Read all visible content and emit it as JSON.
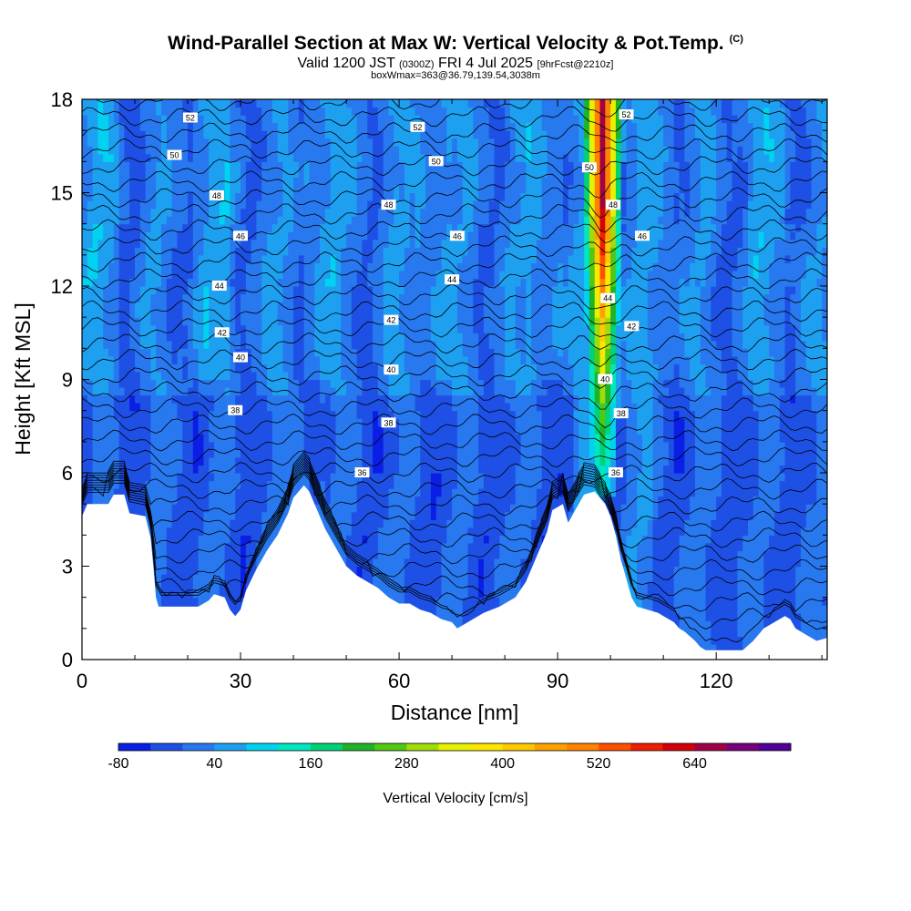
{
  "header": {
    "title": "Wind-Parallel Section at Max W: Vertical Velocity & Pot.Temp.",
    "copyright": "(C)",
    "valid_prefix": "Valid 1200 JST",
    "valid_utc": "(0300Z)",
    "valid_date": "FRI 4 Jul 2025",
    "forecast": "[9hrFcst@2210z]",
    "boxwmax": "boxWmax=363@36.79,139.54,3038m"
  },
  "chart_data": {
    "type": "heatmap",
    "xlabel": "Distance [nm]",
    "ylabel": "Height [Kft MSL]",
    "xlim": [
      0,
      141
    ],
    "ylim": [
      0,
      18
    ],
    "xticks": [
      0,
      30,
      60,
      90,
      120
    ],
    "yticks": [
      0,
      3,
      6,
      9,
      12,
      15,
      18
    ],
    "colorbar": {
      "label": "Vertical Velocity [cm/s]",
      "tick_labels": [
        "-80",
        "40",
        "160",
        "280",
        "400",
        "520",
        "640"
      ],
      "levels": [
        -80,
        -40,
        0,
        40,
        80,
        120,
        160,
        200,
        240,
        280,
        320,
        360,
        400,
        440,
        480,
        520,
        560,
        600,
        640,
        680
      ],
      "colors": [
        "#0a1ee6",
        "#1e50e6",
        "#2878f0",
        "#1ea0f0",
        "#00d2f0",
        "#00e6be",
        "#00d278",
        "#1eb428",
        "#50c814",
        "#a0dc0a",
        "#e6f000",
        "#ffe600",
        "#ffc800",
        "#ffa000",
        "#ff8200",
        "#ff5000",
        "#f01e00",
        "#d2000a",
        "#a00046",
        "#78007d",
        "#500096"
      ]
    },
    "terrain_kft": [
      [
        0,
        4.6
      ],
      [
        1,
        5.0
      ],
      [
        5,
        5.0
      ],
      [
        6,
        5.3
      ],
      [
        8,
        5.3
      ],
      [
        9,
        4.7
      ],
      [
        12,
        4.6
      ],
      [
        13,
        3.9
      ],
      [
        13.5,
        3.0
      ],
      [
        14,
        2.0
      ],
      [
        14.5,
        1.7
      ],
      [
        22,
        1.7
      ],
      [
        24,
        1.9
      ],
      [
        25,
        2.1
      ],
      [
        27,
        2.0
      ],
      [
        28,
        1.6
      ],
      [
        29,
        1.4
      ],
      [
        30,
        1.6
      ],
      [
        31,
        2.2
      ],
      [
        33,
        2.9
      ],
      [
        35,
        3.5
      ],
      [
        37,
        4.0
      ],
      [
        39,
        4.7
      ],
      [
        40,
        5.2
      ],
      [
        42,
        5.6
      ],
      [
        43,
        5.4
      ],
      [
        44,
        5.0
      ],
      [
        46,
        4.2
      ],
      [
        48,
        3.6
      ],
      [
        50,
        3.0
      ],
      [
        52,
        2.7
      ],
      [
        54,
        2.5
      ],
      [
        56,
        2.3
      ],
      [
        58,
        2.0
      ],
      [
        60,
        1.8
      ],
      [
        62,
        1.8
      ],
      [
        64,
        1.6
      ],
      [
        66,
        1.5
      ],
      [
        68,
        1.3
      ],
      [
        70,
        1.2
      ],
      [
        71,
        1.0
      ],
      [
        73,
        1.2
      ],
      [
        76,
        1.5
      ],
      [
        79,
        1.7
      ],
      [
        82,
        2.0
      ],
      [
        84,
        2.5
      ],
      [
        86,
        3.3
      ],
      [
        88,
        4.1
      ],
      [
        89,
        4.8
      ],
      [
        91,
        5.0
      ],
      [
        92,
        4.4
      ],
      [
        93,
        4.7
      ],
      [
        95,
        5.3
      ],
      [
        97,
        5.4
      ],
      [
        99,
        5.0
      ],
      [
        100,
        4.6
      ],
      [
        101,
        4.0
      ],
      [
        102,
        3.2
      ],
      [
        103,
        2.6
      ],
      [
        104,
        2.0
      ],
      [
        105,
        1.7
      ],
      [
        107,
        1.6
      ],
      [
        109,
        1.5
      ],
      [
        110,
        1.4
      ],
      [
        111,
        1.3
      ],
      [
        112,
        1.2
      ],
      [
        113,
        1.0
      ],
      [
        114,
        0.9
      ],
      [
        116,
        0.6
      ],
      [
        117,
        0.4
      ],
      [
        118,
        0.3
      ],
      [
        125,
        0.3
      ],
      [
        127,
        0.6
      ],
      [
        129,
        1.0
      ],
      [
        131,
        1.2
      ],
      [
        133,
        1.4
      ],
      [
        134,
        1.3
      ],
      [
        135,
        1.0
      ],
      [
        137,
        0.8
      ],
      [
        139,
        0.6
      ],
      [
        141,
        0.7
      ]
    ],
    "updraft": {
      "x_center": 98.5,
      "bottom_kft": 5.2,
      "top_kft": 18,
      "max_cm_s": 600
    },
    "potential_temperature_labels": [
      {
        "value": "52",
        "x": 20.5,
        "y": 17.4
      },
      {
        "value": "52",
        "x": 63.5,
        "y": 17.1
      },
      {
        "value": "52",
        "x": 103,
        "y": 17.5
      },
      {
        "value": "50",
        "x": 17.5,
        "y": 16.2
      },
      {
        "value": "50",
        "x": 67,
        "y": 16.0
      },
      {
        "value": "50",
        "x": 96,
        "y": 15.8
      },
      {
        "value": "48",
        "x": 25.5,
        "y": 14.9
      },
      {
        "value": "48",
        "x": 58,
        "y": 14.6
      },
      {
        "value": "48",
        "x": 100.5,
        "y": 14.6
      },
      {
        "value": "46",
        "x": 30,
        "y": 13.6
      },
      {
        "value": "46",
        "x": 71,
        "y": 13.6
      },
      {
        "value": "46",
        "x": 106,
        "y": 13.6
      },
      {
        "value": "44",
        "x": 26,
        "y": 12.0
      },
      {
        "value": "44",
        "x": 70,
        "y": 12.2
      },
      {
        "value": "44",
        "x": 99.5,
        "y": 11.6
      },
      {
        "value": "42",
        "x": 26.5,
        "y": 10.5
      },
      {
        "value": "42",
        "x": 58.5,
        "y": 10.9
      },
      {
        "value": "42",
        "x": 104,
        "y": 10.7
      },
      {
        "value": "40",
        "x": 30,
        "y": 9.7
      },
      {
        "value": "40",
        "x": 58.5,
        "y": 9.3
      },
      {
        "value": "40",
        "x": 99,
        "y": 9.0
      },
      {
        "value": "38",
        "x": 29,
        "y": 8.0
      },
      {
        "value": "38",
        "x": 58,
        "y": 7.6
      },
      {
        "value": "38",
        "x": 102,
        "y": 7.9
      },
      {
        "value": "36",
        "x": 53,
        "y": 6.0
      },
      {
        "value": "36",
        "x": 101,
        "y": 6.0
      }
    ]
  }
}
